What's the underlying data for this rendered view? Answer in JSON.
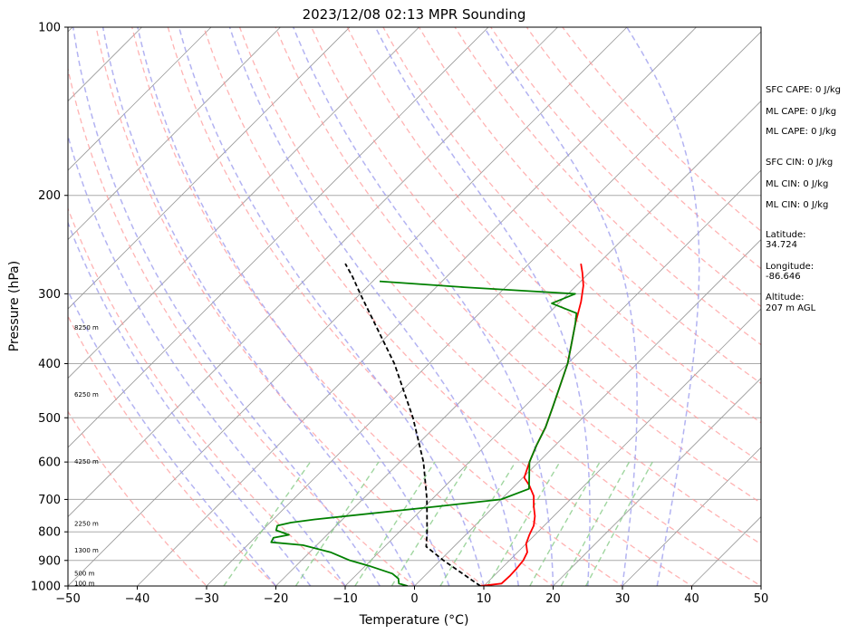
{
  "chart_data": {
    "type": "line",
    "title": "2023/12/08 02:13 MPR Sounding",
    "xlabel": "Temperature (°C)",
    "ylabel": "Pressure (hPa)",
    "xlim": [
      -50,
      50
    ],
    "ylim": [
      1000,
      100
    ],
    "y_scale": "log",
    "grid": true,
    "x_ticks": [
      "−50",
      "−40",
      "−30",
      "−20",
      "−10",
      "0",
      "10",
      "20",
      "30",
      "40",
      "50"
    ],
    "x_tick_values": [
      -50,
      -40,
      -30,
      -20,
      -10,
      0,
      10,
      20,
      30,
      40,
      50
    ],
    "y_ticks": [
      "100",
      "200",
      "300",
      "400",
      "500",
      "600",
      "700",
      "800",
      "900",
      "1000"
    ],
    "y_tick_values": [
      100,
      200,
      300,
      400,
      500,
      600,
      700,
      800,
      900,
      1000
    ],
    "series": [
      {
        "kind": "temperature",
        "color": "#ff0000",
        "points": [
          [
            1000,
            9.5
          ],
          [
            990,
            12.2
          ],
          [
            960,
            12.3
          ],
          [
            930,
            12.2
          ],
          [
            900,
            12.0
          ],
          [
            870,
            11.4
          ],
          [
            840,
            10.0
          ],
          [
            810,
            9.2
          ],
          [
            780,
            8.5
          ],
          [
            750,
            7.3
          ],
          [
            720,
            5.7
          ],
          [
            690,
            4.2
          ],
          [
            660,
            2.0
          ],
          [
            640,
            0.2
          ],
          [
            600,
            -1.3
          ],
          [
            560,
            -2.7
          ],
          [
            520,
            -4.0
          ],
          [
            480,
            -5.8
          ],
          [
            440,
            -7.8
          ],
          [
            400,
            -10.0
          ],
          [
            370,
            -12.2
          ],
          [
            340,
            -14.6
          ],
          [
            310,
            -17.0
          ],
          [
            290,
            -19.0
          ],
          [
            275,
            -21.0
          ],
          [
            265,
            -22.5
          ]
        ]
      },
      {
        "kind": "dewpoint",
        "color": "#008000",
        "points": [
          [
            1000,
            -1.0
          ],
          [
            990,
            -2.6
          ],
          [
            970,
            -3.4
          ],
          [
            950,
            -5.0
          ],
          [
            920,
            -9.5
          ],
          [
            900,
            -13.0
          ],
          [
            870,
            -17.0
          ],
          [
            845,
            -22.0
          ],
          [
            835,
            -27.0
          ],
          [
            820,
            -27.3
          ],
          [
            810,
            -25.5
          ],
          [
            795,
            -28.0
          ],
          [
            780,
            -28.5
          ],
          [
            770,
            -27.0
          ],
          [
            760,
            -24.0
          ],
          [
            720,
            -8.0
          ],
          [
            700,
            0.0
          ],
          [
            670,
            2.5
          ],
          [
            600,
            -1.3
          ],
          [
            560,
            -2.7
          ],
          [
            520,
            -4.0
          ],
          [
            480,
            -5.8
          ],
          [
            440,
            -7.8
          ],
          [
            400,
            -10.0
          ],
          [
            370,
            -12.2
          ],
          [
            340,
            -14.6
          ],
          [
            325,
            -16.0
          ],
          [
            312,
            -21.0
          ],
          [
            300,
            -19.0
          ],
          [
            292,
            -36.0
          ],
          [
            285,
            -49.0
          ]
        ]
      },
      {
        "kind": "parcel",
        "color": "#000000",
        "points": [
          [
            1000,
            9.5
          ],
          [
            900,
            0.5
          ],
          [
            850,
            -4.0
          ],
          [
            800,
            -6.0
          ],
          [
            700,
            -10.7
          ],
          [
            600,
            -16.6
          ],
          [
            500,
            -24.5
          ],
          [
            400,
            -35.0
          ],
          [
            300,
            -50.0
          ],
          [
            280,
            -53.5
          ],
          [
            265,
            -56.5
          ]
        ]
      }
    ],
    "dry_adiabats_C": [
      -30,
      -20,
      -10,
      0,
      10,
      20,
      30,
      40,
      50,
      60,
      70,
      80,
      90,
      100,
      110,
      120,
      130,
      140
    ],
    "moist_adiabats_C": [
      -20,
      -15,
      -10,
      -5,
      0,
      5,
      10,
      15,
      20,
      25,
      30,
      35
    ],
    "mixing_ratios_gkg": [
      0.4,
      1,
      2,
      3,
      5,
      8,
      12,
      16,
      20
    ],
    "height_labels": [
      {
        "text": "100 m",
        "p": 990
      },
      {
        "text": "500 m",
        "p": 950
      },
      {
        "text": "1300 m",
        "p": 865
      },
      {
        "text": "2250 m",
        "p": 775
      },
      {
        "text": "4250 m",
        "p": 600
      },
      {
        "text": "6250 m",
        "p": 455
      },
      {
        "text": "8250 m",
        "p": 345
      }
    ]
  },
  "side_panel": {
    "sfc_cape": "SFC CAPE: 0 J/kg",
    "ml_cape_1": "ML CAPE: 0 J/kg",
    "ml_cape_2": "ML CAPE: 0 J/kg",
    "sfc_cin": "SFC CIN: 0 J/kg",
    "ml_cin_1": "ML CIN: 0 J/kg",
    "ml_cin_2": "ML CIN: 0 J/kg",
    "latitude_label": "Latitude:",
    "latitude_value": "34.724",
    "longitude_label": "Longitude:",
    "longitude_value": "-86.646",
    "altitude_label": "Altitude:",
    "altitude_value": "207 m AGL"
  },
  "colors": {
    "dry_adiabat": "#ff9999",
    "moist_adiabat": "#9999ee",
    "mixing_ratio": "#88cc88",
    "isotherm": "#999999",
    "isobar": "#aaaaaa"
  }
}
